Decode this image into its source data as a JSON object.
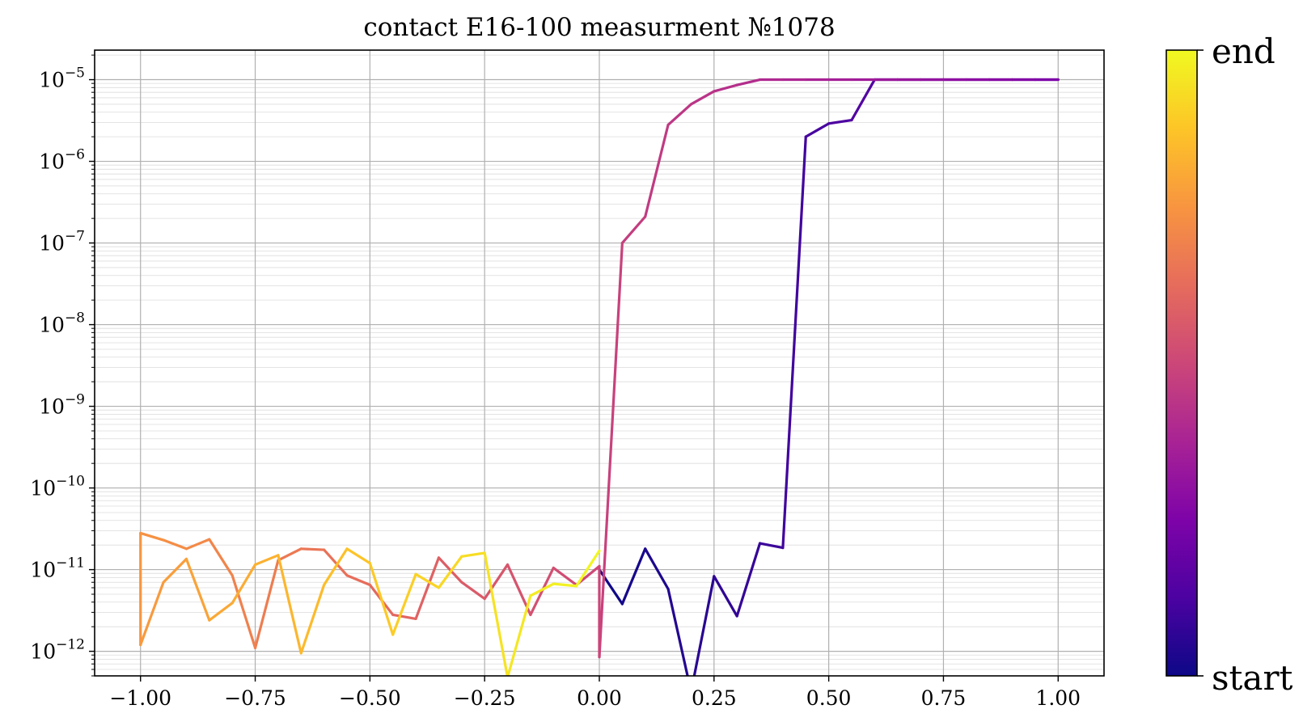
{
  "chart_data": {
    "type": "line",
    "title": "contact E16-100 measurment №1078",
    "xlabel": "",
    "ylabel": "",
    "xlim": [
      -1.1,
      1.1
    ],
    "ylim": [
      5e-13,
      2.3e-05
    ],
    "yscale": "log",
    "grid": "major and minor",
    "colormap": "plasma",
    "colorbar": {
      "bottom_label": "start",
      "top_label": "end"
    },
    "x_ticks": [
      "−1.00",
      "−0.75",
      "−0.50",
      "−0.25",
      "0.00",
      "0.25",
      "0.50",
      "0.75",
      "1.00"
    ],
    "y_ticks": [
      {
        "base": "10",
        "exp": "−12",
        "value": 1e-12
      },
      {
        "base": "10",
        "exp": "−11",
        "value": 1e-11
      },
      {
        "base": "10",
        "exp": "−10",
        "value": 1e-10
      },
      {
        "base": "10",
        "exp": "−9",
        "value": 1e-09
      },
      {
        "base": "10",
        "exp": "−8",
        "value": 1e-08
      },
      {
        "base": "10",
        "exp": "−7",
        "value": 1e-07
      },
      {
        "base": "10",
        "exp": "−6",
        "value": 1e-06
      },
      {
        "base": "10",
        "exp": "−5",
        "value": 1e-05
      }
    ],
    "sweep": [
      [
        0.0,
        1e-11
      ],
      [
        0.05,
        3.8e-12
      ],
      [
        0.1,
        1.8e-11
      ],
      [
        0.15,
        5.8e-12
      ],
      [
        0.2,
        3.2e-13
      ],
      [
        0.25,
        8.3e-12
      ],
      [
        0.3,
        2.7e-12
      ],
      [
        0.35,
        2.1e-11
      ],
      [
        0.4,
        1.85e-11
      ],
      [
        0.45,
        2e-06
      ],
      [
        0.5,
        2.9e-06
      ],
      [
        0.55,
        3.2e-06
      ],
      [
        0.6,
        1e-05
      ],
      [
        0.65,
        1e-05
      ],
      [
        0.7,
        1e-05
      ],
      [
        0.75,
        1e-05
      ],
      [
        0.8,
        1e-05
      ],
      [
        0.85,
        1e-05
      ],
      [
        0.9,
        1e-05
      ],
      [
        0.95,
        1e-05
      ],
      [
        1.0,
        1e-05
      ],
      [
        0.95,
        1e-05
      ],
      [
        0.9,
        1e-05
      ],
      [
        0.85,
        1e-05
      ],
      [
        0.8,
        1e-05
      ],
      [
        0.75,
        1e-05
      ],
      [
        0.7,
        1e-05
      ],
      [
        0.65,
        1e-05
      ],
      [
        0.6,
        1e-05
      ],
      [
        0.55,
        1e-05
      ],
      [
        0.5,
        1e-05
      ],
      [
        0.45,
        1e-05
      ],
      [
        0.4,
        1e-05
      ],
      [
        0.35,
        1e-05
      ],
      [
        0.3,
        8.6e-06
      ],
      [
        0.25,
        7.2e-06
      ],
      [
        0.2,
        5e-06
      ],
      [
        0.15,
        2.8e-06
      ],
      [
        0.1,
        2.1e-07
      ],
      [
        0.05,
        1e-07
      ],
      [
        0.0,
        8.5e-13
      ],
      [
        0.0,
        1.1e-11
      ],
      [
        -0.05,
        6.5e-12
      ],
      [
        -0.1,
        1.05e-11
      ],
      [
        -0.15,
        2.8e-12
      ],
      [
        -0.2,
        1.15e-11
      ],
      [
        -0.25,
        4.4e-12
      ],
      [
        -0.3,
        7e-12
      ],
      [
        -0.35,
        1.4e-11
      ],
      [
        -0.4,
        2.5e-12
      ],
      [
        -0.45,
        2.8e-12
      ],
      [
        -0.5,
        6.5e-12
      ],
      [
        -0.55,
        8.5e-12
      ],
      [
        -0.6,
        1.75e-11
      ],
      [
        -0.65,
        1.8e-11
      ],
      [
        -0.7,
        1.3e-11
      ],
      [
        -0.75,
        1.1e-12
      ],
      [
        -0.8,
        8.5e-12
      ],
      [
        -0.85,
        2.35e-11
      ],
      [
        -0.9,
        1.8e-11
      ],
      [
        -0.95,
        2.3e-11
      ],
      [
        -1.0,
        2.8e-11
      ],
      [
        -1.0,
        1.2e-12
      ],
      [
        -0.95,
        7e-12
      ],
      [
        -0.9,
        1.35e-11
      ],
      [
        -0.85,
        2.4e-12
      ],
      [
        -0.8,
        3.9e-12
      ],
      [
        -0.75,
        1.15e-11
      ],
      [
        -0.7,
        1.5e-11
      ],
      [
        -0.65,
        9.5e-13
      ],
      [
        -0.6,
        6.5e-12
      ],
      [
        -0.55,
        1.8e-11
      ],
      [
        -0.5,
        1.2e-11
      ],
      [
        -0.45,
        1.6e-12
      ],
      [
        -0.4,
        8.8e-12
      ],
      [
        -0.35,
        6e-12
      ],
      [
        -0.3,
        1.45e-11
      ],
      [
        -0.25,
        1.6e-11
      ],
      [
        -0.2,
        4.8e-13
      ],
      [
        -0.15,
        4.8e-12
      ],
      [
        -0.1,
        6.7e-12
      ],
      [
        -0.05,
        6.3e-12
      ],
      [
        0.0,
        1.7e-11
      ]
    ]
  }
}
